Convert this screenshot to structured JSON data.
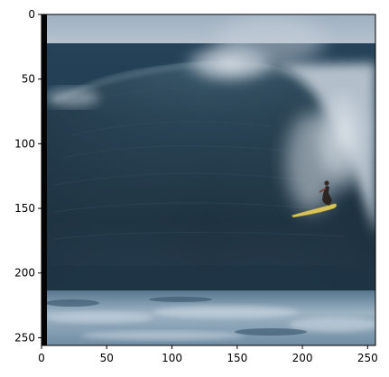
{
  "image": {
    "subject": "surfer riding inside a large breaking wave",
    "icon": "photo-image",
    "colors": {
      "sky": "#a7b4c4",
      "deep_wave": "#1e3240",
      "mid_wave": "#2b4658",
      "spray": "#c9d3dc",
      "foam": "#b9c7d3",
      "board": "#d8c25a"
    }
  },
  "axes": {
    "x": {
      "range": [
        0,
        256
      ],
      "ticks": [
        0,
        50,
        100,
        150,
        200,
        250
      ],
      "tick_labels": [
        "0",
        "50",
        "100",
        "150",
        "200",
        "250"
      ]
    },
    "y": {
      "range": [
        0,
        256
      ],
      "inverted": true,
      "ticks": [
        0,
        50,
        100,
        150,
        200,
        250
      ],
      "tick_labels": [
        "0",
        "50",
        "100",
        "150",
        "200",
        "250"
      ]
    }
  }
}
